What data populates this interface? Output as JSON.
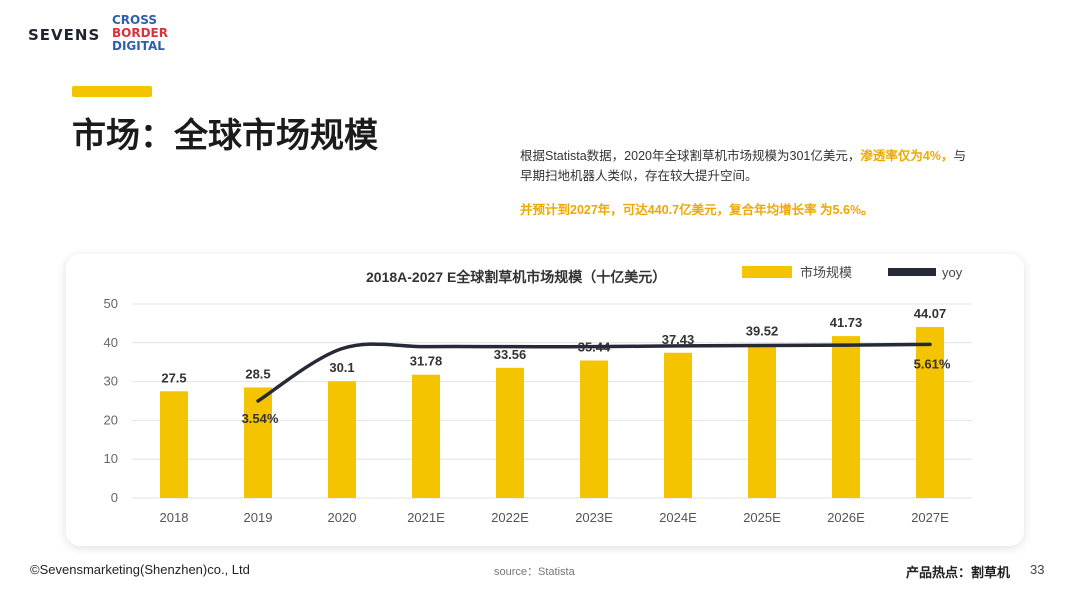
{
  "header": {
    "logo_left": "SEVENS",
    "logo_right": [
      "CROSS",
      "BORDER",
      "DIGITAL"
    ],
    "title": "市场：全球市场规模"
  },
  "description": {
    "line1_a": "根据Statista数据，2020年全球割草机市场规模为301亿美元，",
    "line1_hl": "渗透率仅为4%，",
    "line1_b": "与早期扫地机器人类似，存在较大提升空间。",
    "line2": "并预计到2027年，可达440.7亿美元，复合年均增长率 为5.6%。"
  },
  "chart_data": {
    "type": "bar",
    "title": "2018A-2027 E全球割草机市场规模（十亿美元）",
    "categories": [
      "2018",
      "2019",
      "2020",
      "2021E",
      "2022E",
      "2023E",
      "2024E",
      "2025E",
      "2026E",
      "2027E"
    ],
    "series": [
      {
        "name": "市场规模",
        "type": "bar",
        "color": "#f5c400",
        "values": [
          27.5,
          28.5,
          30.1,
          31.78,
          33.56,
          35.44,
          37.43,
          39.52,
          41.73,
          44.07
        ],
        "labels": [
          "27.5",
          "28.5",
          "30.1",
          "31.78",
          "33.56",
          "35.44",
          "37.43",
          "39.52",
          "41.73",
          "44.07"
        ]
      },
      {
        "name": "yoy",
        "type": "line",
        "color": "#262a36",
        "line_points": [
          null,
          25,
          38.5,
          39,
          39,
          39,
          39.2,
          39.3,
          39.4,
          39.6
        ],
        "labels": [
          null,
          "3.54%",
          null,
          null,
          null,
          null,
          null,
          null,
          null,
          "5.61%"
        ]
      }
    ],
    "yticks": [
      0,
      10,
      20,
      30,
      40,
      50
    ],
    "ylim": [
      0,
      50
    ],
    "grid": true,
    "legend": "top-right"
  },
  "footer": {
    "copyright": "©Sevensmarketing(Shenzhen)co., Ltd",
    "source": "source：Statista",
    "topic": "产品热点：割草机",
    "page": "33"
  }
}
